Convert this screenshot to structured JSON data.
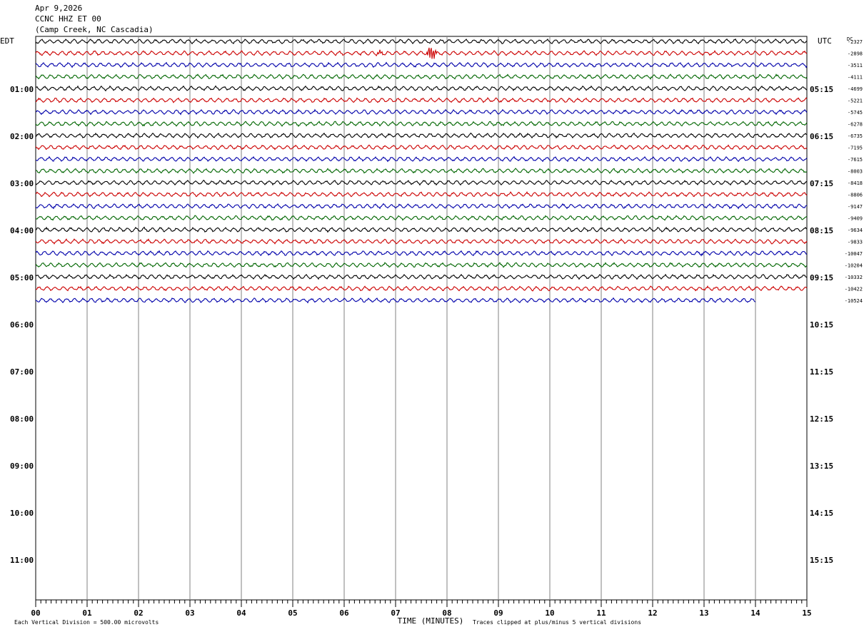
{
  "header": {
    "date": "Apr 9,2026",
    "station": "CCNC HHZ ET 00",
    "location": "(Camp Creek, NC Cascadia)"
  },
  "footer": {
    "scale_note": "Each Vertical Division =  500.00 microvolts",
    "clip_note": "Traces clipped at plus/minus 5 vertical divisions"
  },
  "chart_data": {
    "type": "line",
    "subtype": "helicorder",
    "title": "",
    "xlabel": "TIME (MINUTES)",
    "left_axis_label": "EDT",
    "right_axis_label": "UTC",
    "dc_label": "DC",
    "xlim": [
      0,
      15
    ],
    "x_ticks": [
      "00",
      "01",
      "02",
      "03",
      "04",
      "05",
      "06",
      "07",
      "08",
      "09",
      "10",
      "11",
      "12",
      "13",
      "14",
      "15"
    ],
    "edt_hour_labels": [
      "01:00",
      "02:00",
      "03:00",
      "04:00",
      "05:00",
      "06:00",
      "07:00",
      "08:00",
      "09:00",
      "10:00",
      "11:00"
    ],
    "utc_hour_labels": [
      "05:15",
      "06:15",
      "07:15",
      "08:15",
      "09:15",
      "10:15",
      "11:15",
      "12:15",
      "13:15",
      "14:15",
      "15:15"
    ],
    "rows_per_hour": 4,
    "minutes_per_row": 15,
    "trace_colors": [
      "#000000",
      "#cc0000",
      "#0000aa",
      "#006600"
    ],
    "grid": true,
    "dc_offsets": [
      -2327,
      -2898,
      -3511,
      -4111,
      -4699,
      -5221,
      -5745,
      -6278,
      -6735,
      -7195,
      -7615,
      -8003,
      -8418,
      -8806,
      -9147,
      -9409,
      -9634,
      -9833,
      -10047,
      -10204,
      -10332,
      -10422,
      -10524
    ],
    "last_trace_end_minute": 14.0,
    "events": [
      {
        "row": 1,
        "minute": 7.7,
        "type": "local event",
        "peak_divisions": 5
      },
      {
        "row": 1,
        "minute": 6.7,
        "type": "small spike",
        "peak_divisions": 1
      }
    ]
  }
}
